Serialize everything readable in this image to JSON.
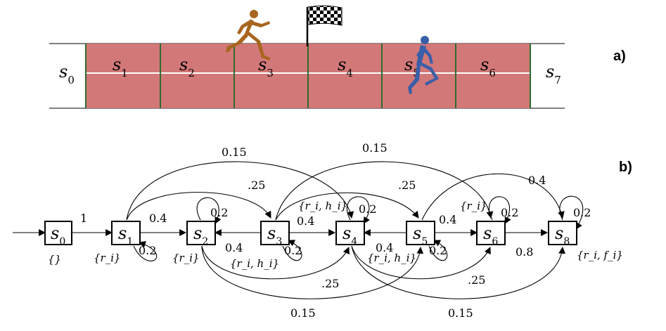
{
  "panel_a": {
    "label": "a)",
    "cells": [
      {
        "base": "s",
        "sub": "0"
      },
      {
        "base": "s",
        "sub": "1"
      },
      {
        "base": "s",
        "sub": "2"
      },
      {
        "base": "s",
        "sub": "3"
      },
      {
        "base": "s",
        "sub": "4"
      },
      {
        "base": "s",
        "sub": "5"
      },
      {
        "base": "s",
        "sub": "6"
      },
      {
        "base": "s",
        "sub": "7"
      }
    ],
    "colors": {
      "track": "#d37878",
      "divider": "#2e6b2e",
      "runner_a": "#a8651f",
      "runner_b": "#3a5fa8"
    }
  },
  "panel_b": {
    "label": "b)",
    "states": [
      {
        "base": "s",
        "sub": "0",
        "set": "{}"
      },
      {
        "base": "s",
        "sub": "1",
        "set": "{r_i}"
      },
      {
        "base": "s",
        "sub": "2",
        "set": "{r_i}"
      },
      {
        "base": "s",
        "sub": "3",
        "set": "{r_i, h_i}"
      },
      {
        "base": "s",
        "sub": "4",
        "set": "{r_i, h_i}"
      },
      {
        "base": "s",
        "sub": "5",
        "set": "{r_i, h_i}"
      },
      {
        "base": "s",
        "sub": "6",
        "set": "{r_i}"
      },
      {
        "base": "s",
        "sub": "8",
        "set": "{r_i, f_i}"
      }
    ],
    "edge_labels": {
      "s0_s1": "1",
      "s1_s2": "0.4",
      "s1_loop": "0.2",
      "s2_loop": "0.2",
      "s3_s2": "0.4",
      "s3_loop": "0.2",
      "s3_s4": "0.4",
      "s4_loop": "0.2",
      "s5_s4": "0.4",
      "s5_loop": "0.2",
      "s5_s6": "0.4",
      "s6_loop": "0.2",
      "s6_s8": "0.8",
      "s8_loop": "0.2",
      "s1_s3": ".25",
      "s1_s4_top": "0.15",
      "s3_s5": ".25",
      "s3_s6_top": "0.15",
      "s5_s8": "0.4",
      "s2_s4": ".25",
      "s2_s5_bot": "0.15",
      "s4_s6": ".25",
      "s4_s8_bot": "0.15"
    }
  }
}
